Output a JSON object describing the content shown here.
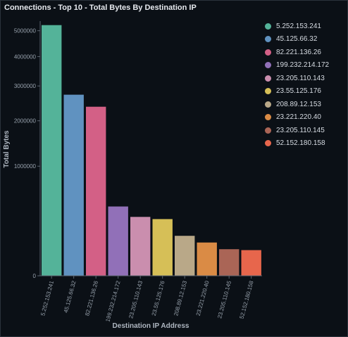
{
  "panel": {
    "title": "Connections - Top 10 - Total Bytes By Destination IP"
  },
  "chart_data": {
    "type": "bar",
    "title": "",
    "xlabel": "Destination IP Address",
    "ylabel": "Total Bytes",
    "y_scale": "sqrt",
    "ylim": [
      0,
      5400000
    ],
    "yticks": [
      1000000,
      2000000,
      3000000,
      4000000,
      5000000
    ],
    "ytick_labels": [
      "1000000",
      "2000000",
      "3000000",
      "4000000",
      "5000000"
    ],
    "zero_tick_label": "0",
    "grid": false,
    "legend_position": "top-right",
    "categories": [
      "5.252.153.241",
      "45.125.66.32",
      "82.221.136.26",
      "199.232.214.172",
      "23.205.110.143",
      "23.55.125.176",
      "208.89.12.153",
      "23.221.220.40",
      "23.205.110.145",
      "52.152.180.158"
    ],
    "values": [
      5230000,
      2730000,
      2380000,
      400000,
      289000,
      268000,
      133000,
      92000,
      59000,
      55000
    ],
    "colors": [
      "#54b399",
      "#6092c0",
      "#d36086",
      "#9170b8",
      "#ca8eae",
      "#d6bf57",
      "#b9a888",
      "#da8b45",
      "#aa6556",
      "#e7664c"
    ]
  }
}
